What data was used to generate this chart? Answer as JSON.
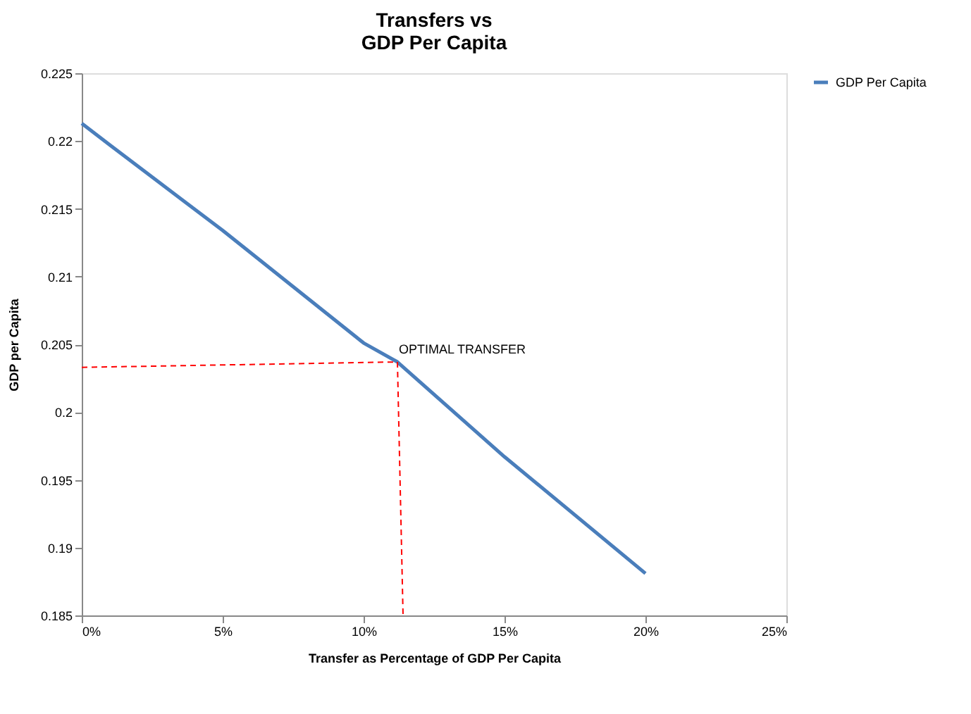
{
  "chart_data": {
    "type": "line",
    "title": "Transfers  vs\nGDP Per Capita",
    "xlabel": "Transfer as Percentage of GDP Per Capita",
    "ylabel": "GDP per Capita",
    "xlim": [
      0,
      25
    ],
    "xticks": [
      {
        "value": 0,
        "label": "0%"
      },
      {
        "value": 5,
        "label": "5%"
      },
      {
        "value": 10,
        "label": "10%"
      },
      {
        "value": 15,
        "label": "15%"
      },
      {
        "value": 20,
        "label": "20%"
      },
      {
        "value": 25,
        "label": "25%"
      }
    ],
    "ylim": [
      0.185,
      0.225
    ],
    "yticks": [
      0.185,
      0.19,
      0.195,
      0.2,
      0.205,
      0.21,
      0.215,
      0.22,
      0.225
    ],
    "grid": false,
    "legend": "right",
    "marker": "none",
    "series": [
      {
        "name": "GDP Per Capita",
        "color": "#4a7ebb",
        "line_style": "solid",
        "x": [
          0,
          1,
          5,
          10,
          11.2,
          15,
          20
        ],
        "values": [
          0.2213,
          0.2197,
          0.2134,
          0.2051,
          0.2037,
          0.1967,
          0.1881
        ]
      },
      {
        "color": "#ff0000",
        "line_style": "dashed",
        "x": [
          0,
          11.2
        ],
        "values": [
          0.2033,
          0.2037
        ]
      },
      {
        "color": "#ff0000",
        "line_style": "dashed",
        "x": [
          11.2,
          11.4
        ],
        "values": [
          0.2037,
          0.185
        ]
      }
    ],
    "annotations": [
      {
        "text": "OPTIMAL TRANSFER",
        "x": 11.2,
        "y": 0.2037
      }
    ]
  }
}
